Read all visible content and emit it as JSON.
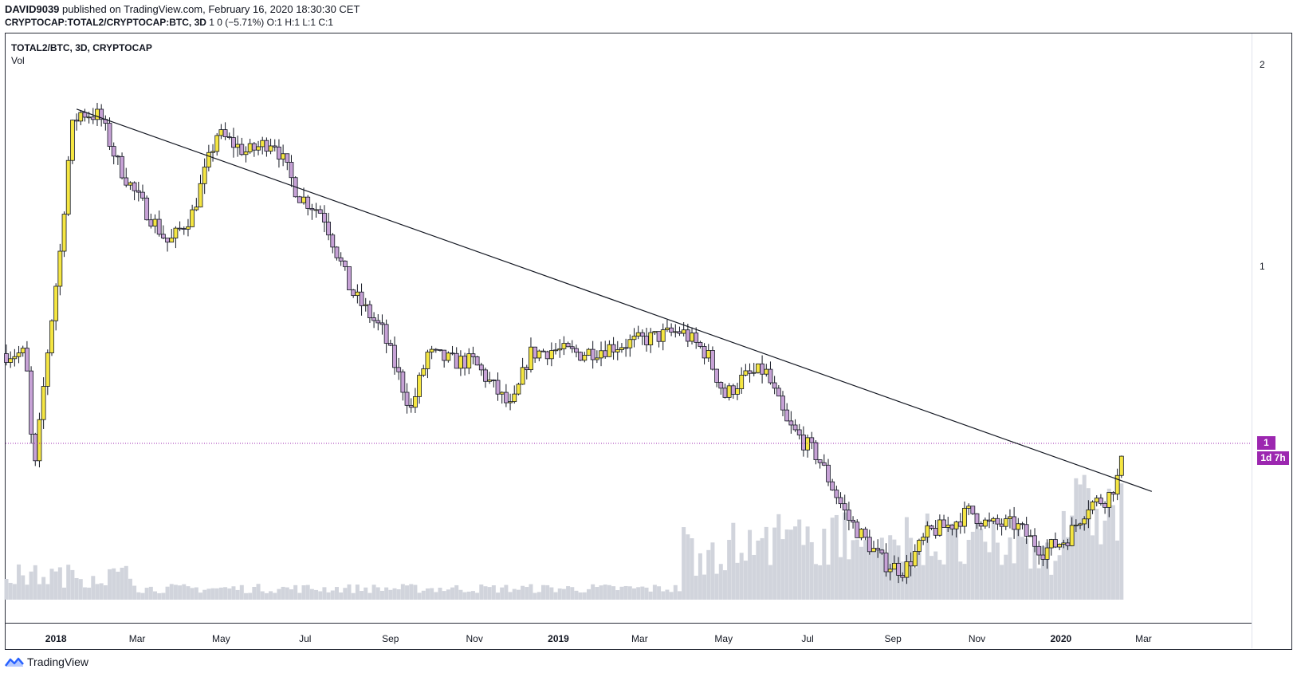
{
  "header": {
    "author": "DAVID9039",
    "published_text": "published on TradingView.com, February 16, 2020 18:30:30 CET",
    "symbol": "CRYPTOCAP:TOTAL2/CRYPTOCAP:BTC, 3D",
    "ohlc": "1 0 (−5.71%) O:1 H:1 L:1 C:1"
  },
  "pane": {
    "title": "TOTAL2/BTC, 3D, CRYPTOCAP",
    "volume_label": "Vol"
  },
  "price_axis": {
    "ticks": [
      "2",
      "1"
    ]
  },
  "current_price_label": "1",
  "countdown_label": "1d 7h",
  "time_axis": {
    "ticks": [
      {
        "label": "2018",
        "major": true
      },
      {
        "label": "Mar",
        "major": false
      },
      {
        "label": "May",
        "major": false
      },
      {
        "label": "Jul",
        "major": false
      },
      {
        "label": "Sep",
        "major": false
      },
      {
        "label": "Nov",
        "major": false
      },
      {
        "label": "2019",
        "major": true
      },
      {
        "label": "Mar",
        "major": false
      },
      {
        "label": "May",
        "major": false
      },
      {
        "label": "Jul",
        "major": false
      },
      {
        "label": "Sep",
        "major": false
      },
      {
        "label": "Nov",
        "major": false
      },
      {
        "label": "2020",
        "major": true
      },
      {
        "label": "Mar",
        "major": false
      }
    ]
  },
  "brand": "TradingView",
  "colors": {
    "up": "#f5e642",
    "down": "#c7a2d6",
    "wick": "#131722",
    "volume": "#d1d4dc",
    "accent": "#9c27b0"
  },
  "chart_data": {
    "type": "candlestick",
    "title": "TOTAL2/BTC, 3D, CRYPTOCAP",
    "x_range": [
      "2017-11-26",
      "2020-03-10"
    ],
    "y_axis_ticks": [
      2,
      1
    ],
    "log_scale": true,
    "grid": false,
    "anchors": [
      [
        "2017-11-26",
        0.74
      ],
      [
        "2017-12-10",
        0.74
      ],
      [
        "2017-12-16",
        0.48
      ],
      [
        "2017-12-25",
        0.72
      ],
      [
        "2018-01-04",
        1.05
      ],
      [
        "2018-01-12",
        1.6
      ],
      [
        "2018-01-18",
        1.7
      ],
      [
        "2018-02-02",
        1.68
      ],
      [
        "2018-02-14",
        1.44
      ],
      [
        "2018-02-28",
        1.28
      ],
      [
        "2018-03-24",
        1.08
      ],
      [
        "2018-04-10",
        1.2
      ],
      [
        "2018-04-28",
        1.58
      ],
      [
        "2018-05-20",
        1.48
      ],
      [
        "2018-06-08",
        1.55
      ],
      [
        "2018-06-26",
        1.28
      ],
      [
        "2018-07-14",
        1.2
      ],
      [
        "2018-08-03",
        0.92
      ],
      [
        "2018-08-26",
        0.8
      ],
      [
        "2018-09-16",
        0.61
      ],
      [
        "2018-09-28",
        0.74
      ],
      [
        "2018-10-17",
        0.72
      ],
      [
        "2018-10-31",
        0.72
      ],
      [
        "2018-11-28",
        0.61
      ],
      [
        "2018-12-11",
        0.74
      ],
      [
        "2018-12-28",
        0.75
      ],
      [
        "2019-01-17",
        0.74
      ],
      [
        "2019-02-11",
        0.76
      ],
      [
        "2019-03-08",
        0.78
      ],
      [
        "2019-03-31",
        0.8
      ],
      [
        "2019-04-19",
        0.74
      ],
      [
        "2019-05-02",
        0.64
      ],
      [
        "2019-05-15",
        0.68
      ],
      [
        "2019-05-31",
        0.7
      ],
      [
        "2019-06-16",
        0.58
      ],
      [
        "2019-07-08",
        0.52
      ],
      [
        "2019-07-30",
        0.42
      ],
      [
        "2019-08-25",
        0.36
      ],
      [
        "2019-09-09",
        0.35
      ],
      [
        "2019-09-27",
        0.4
      ],
      [
        "2019-10-13",
        0.41
      ],
      [
        "2019-10-27",
        0.43
      ],
      [
        "2019-11-09",
        0.41
      ],
      [
        "2019-11-29",
        0.41
      ],
      [
        "2019-12-19",
        0.375
      ],
      [
        "2020-01-05",
        0.39
      ],
      [
        "2020-01-21",
        0.44
      ],
      [
        "2020-02-04",
        0.45
      ],
      [
        "2020-02-13",
        0.49
      ],
      [
        "2020-02-16",
        0.54
      ]
    ],
    "trendline": [
      [
        "2018-01-16",
        1.72
      ],
      [
        "2020-03-07",
        0.46
      ]
    ],
    "last_price_marker": 1
  }
}
